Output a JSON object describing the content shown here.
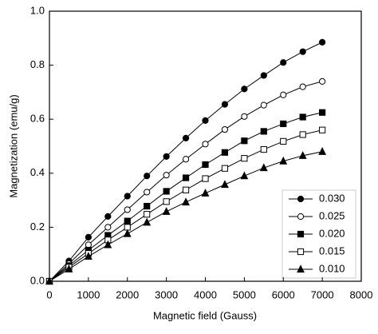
{
  "chart_data": {
    "type": "line",
    "x_label": "Magnetic field (Gauss)",
    "y_label": "Magnetization (emu/g)",
    "x": [
      0,
      500,
      1000,
      1500,
      2000,
      2500,
      3000,
      3500,
      4000,
      4500,
      5000,
      5500,
      6000,
      6500,
      7000
    ],
    "series": [
      {
        "name": "0.030",
        "color": "#000000",
        "marker": "circle",
        "values": [
          0,
          0.075,
          0.163,
          0.24,
          0.315,
          0.39,
          0.462,
          0.53,
          0.595,
          0.655,
          0.712,
          0.762,
          0.81,
          0.85,
          0.885
        ]
      },
      {
        "name": "0.025",
        "color": "#000000",
        "marker": "circle-open",
        "values": [
          0,
          0.065,
          0.135,
          0.2,
          0.265,
          0.33,
          0.393,
          0.452,
          0.508,
          0.562,
          0.61,
          0.652,
          0.69,
          0.72,
          0.74
        ]
      },
      {
        "name": "0.020",
        "color": "#000000",
        "marker": "square",
        "values": [
          0,
          0.058,
          0.115,
          0.17,
          0.223,
          0.278,
          0.333,
          0.383,
          0.432,
          0.477,
          0.52,
          0.555,
          0.583,
          0.608,
          0.625
        ]
      },
      {
        "name": "0.015",
        "color": "#000000",
        "marker": "square-open",
        "values": [
          0,
          0.052,
          0.103,
          0.153,
          0.2,
          0.248,
          0.295,
          0.338,
          0.38,
          0.418,
          0.455,
          0.488,
          0.518,
          0.543,
          0.56
        ]
      },
      {
        "name": "0.010",
        "color": "#000000",
        "marker": "triangle",
        "values": [
          0,
          0.045,
          0.092,
          0.135,
          0.176,
          0.218,
          0.258,
          0.293,
          0.326,
          0.358,
          0.39,
          0.42,
          0.445,
          0.465,
          0.48
        ]
      }
    ],
    "xlim": [
      0,
      8000
    ],
    "xticks": [
      0,
      1000,
      2000,
      3000,
      4000,
      5000,
      6000,
      7000,
      8000
    ],
    "ylim": [
      0,
      1
    ],
    "yticks": [
      {
        "value": 0,
        "label": "0.0"
      },
      0.2,
      0.4,
      0.6,
      0.8,
      {
        "value": 1,
        "label": "1.0"
      }
    ],
    "legend": "lower-right"
  }
}
